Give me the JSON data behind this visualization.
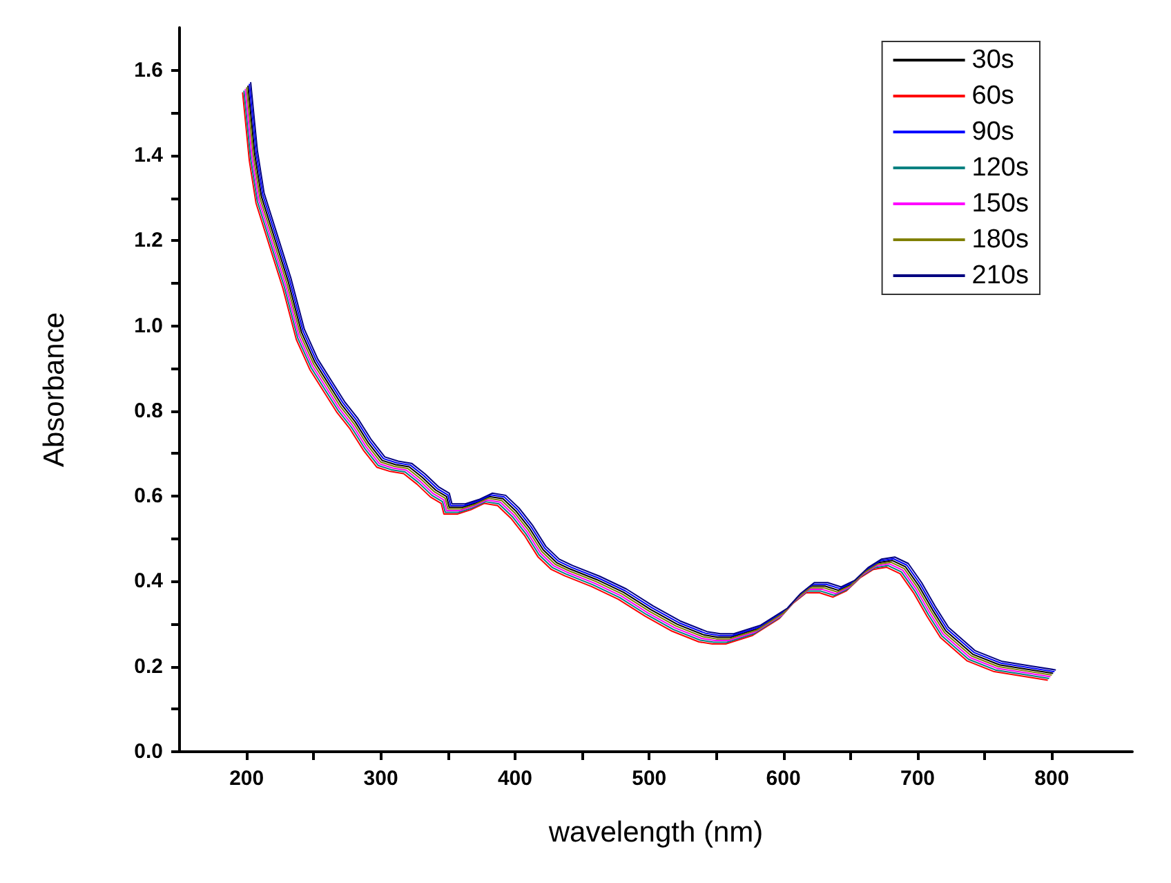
{
  "chart_data": {
    "type": "line",
    "xlabel": "wavelength (nm)",
    "ylabel": "Absorbance",
    "series": [
      {
        "name": "30s",
        "color": "#000000",
        "x": [
          201,
          206,
          211,
          221,
          231,
          241,
          251,
          261,
          271,
          281,
          291,
          301,
          311,
          321,
          331,
          341,
          349,
          351,
          361,
          371,
          381,
          391,
          401,
          411,
          421,
          431,
          441,
          461,
          481,
          501,
          521,
          541,
          551,
          561,
          581,
          601,
          611,
          621,
          631,
          641,
          651,
          661,
          671,
          681,
          691,
          701,
          711,
          721,
          741,
          761,
          781,
          801
        ],
        "values": [
          1.564,
          1.404,
          1.304,
          1.204,
          1.104,
          0.984,
          0.914,
          0.864,
          0.814,
          0.774,
          0.724,
          0.684,
          0.674,
          0.669,
          0.644,
          0.614,
          0.599,
          0.574,
          0.574,
          0.584,
          0.599,
          0.594,
          0.564,
          0.524,
          0.474,
          0.444,
          0.429,
          0.404,
          0.374,
          0.334,
          0.299,
          0.274,
          0.269,
          0.269,
          0.289,
          0.329,
          0.364,
          0.389,
          0.389,
          0.379,
          0.394,
          0.424,
          0.444,
          0.449,
          0.434,
          0.389,
          0.334,
          0.284,
          0.229,
          0.204,
          0.194,
          0.184
        ]
      },
      {
        "name": "60s",
        "color": "#ff0000",
        "x": [
          197,
          202,
          207,
          217,
          227,
          237,
          247,
          257,
          267,
          277,
          287,
          297,
          307,
          317,
          327,
          337,
          345,
          347,
          357,
          367,
          377,
          387,
          397,
          407,
          417,
          427,
          437,
          457,
          477,
          497,
          517,
          537,
          547,
          557,
          577,
          597,
          607,
          617,
          627,
          637,
          647,
          657,
          667,
          677,
          687,
          697,
          707,
          717,
          737,
          757,
          777,
          797
        ],
        "values": [
          1.548,
          1.388,
          1.288,
          1.188,
          1.088,
          0.968,
          0.898,
          0.848,
          0.798,
          0.758,
          0.708,
          0.668,
          0.658,
          0.653,
          0.628,
          0.598,
          0.583,
          0.558,
          0.558,
          0.568,
          0.583,
          0.578,
          0.548,
          0.508,
          0.458,
          0.428,
          0.413,
          0.388,
          0.358,
          0.318,
          0.283,
          0.258,
          0.253,
          0.253,
          0.273,
          0.313,
          0.348,
          0.373,
          0.373,
          0.363,
          0.378,
          0.408,
          0.428,
          0.433,
          0.418,
          0.373,
          0.318,
          0.268,
          0.213,
          0.188,
          0.178,
          0.168
        ]
      },
      {
        "name": "90s",
        "color": "#0000ff",
        "x": [
          202,
          207,
          212,
          222,
          232,
          242,
          252,
          262,
          272,
          282,
          292,
          302,
          312,
          322,
          332,
          342,
          350,
          352,
          362,
          372,
          382,
          392,
          402,
          412,
          422,
          432,
          442,
          462,
          482,
          502,
          522,
          542,
          552,
          562,
          582,
          602,
          612,
          622,
          632,
          642,
          652,
          662,
          672,
          682,
          692,
          702,
          712,
          722,
          742,
          762,
          782,
          802
        ],
        "values": [
          1.568,
          1.408,
          1.308,
          1.208,
          1.108,
          0.988,
          0.918,
          0.868,
          0.818,
          0.778,
          0.728,
          0.688,
          0.678,
          0.673,
          0.648,
          0.618,
          0.603,
          0.578,
          0.578,
          0.588,
          0.603,
          0.598,
          0.568,
          0.528,
          0.478,
          0.448,
          0.433,
          0.408,
          0.378,
          0.338,
          0.303,
          0.278,
          0.273,
          0.273,
          0.293,
          0.333,
          0.368,
          0.393,
          0.393,
          0.383,
          0.398,
          0.428,
          0.448,
          0.453,
          0.438,
          0.393,
          0.338,
          0.288,
          0.233,
          0.208,
          0.198,
          0.188
        ]
      },
      {
        "name": "120s",
        "color": "#008080",
        "x": [
          198,
          203,
          208,
          218,
          228,
          238,
          248,
          258,
          268,
          278,
          288,
          298,
          308,
          318,
          328,
          338,
          346,
          348,
          358,
          368,
          378,
          388,
          398,
          408,
          418,
          428,
          438,
          458,
          478,
          498,
          518,
          538,
          548,
          558,
          578,
          598,
          608,
          618,
          628,
          638,
          648,
          658,
          668,
          678,
          688,
          698,
          708,
          718,
          738,
          758,
          778,
          798
        ],
        "values": [
          1.552,
          1.392,
          1.292,
          1.192,
          1.092,
          0.972,
          0.902,
          0.852,
          0.802,
          0.762,
          0.712,
          0.672,
          0.662,
          0.657,
          0.632,
          0.602,
          0.587,
          0.562,
          0.562,
          0.572,
          0.587,
          0.582,
          0.552,
          0.512,
          0.462,
          0.432,
          0.417,
          0.392,
          0.362,
          0.322,
          0.287,
          0.262,
          0.257,
          0.257,
          0.277,
          0.317,
          0.352,
          0.377,
          0.377,
          0.367,
          0.382,
          0.412,
          0.432,
          0.437,
          0.422,
          0.377,
          0.322,
          0.272,
          0.217,
          0.192,
          0.182,
          0.172
        ]
      },
      {
        "name": "150s",
        "color": "#ff00ff",
        "x": [
          199,
          204,
          209,
          219,
          229,
          239,
          249,
          259,
          269,
          279,
          289,
          299,
          309,
          319,
          329,
          339,
          347,
          349,
          359,
          369,
          379,
          389,
          399,
          409,
          419,
          429,
          439,
          459,
          479,
          499,
          519,
          539,
          549,
          559,
          579,
          599,
          609,
          619,
          629,
          639,
          649,
          659,
          669,
          679,
          689,
          699,
          709,
          719,
          739,
          759,
          779,
          799
        ],
        "values": [
          1.556,
          1.396,
          1.296,
          1.196,
          1.096,
          0.976,
          0.906,
          0.856,
          0.806,
          0.766,
          0.716,
          0.676,
          0.666,
          0.661,
          0.636,
          0.606,
          0.591,
          0.566,
          0.566,
          0.576,
          0.591,
          0.586,
          0.556,
          0.516,
          0.466,
          0.436,
          0.421,
          0.396,
          0.366,
          0.326,
          0.291,
          0.266,
          0.261,
          0.261,
          0.281,
          0.321,
          0.356,
          0.381,
          0.381,
          0.371,
          0.386,
          0.416,
          0.436,
          0.441,
          0.426,
          0.381,
          0.326,
          0.276,
          0.221,
          0.196,
          0.186,
          0.176
        ]
      },
      {
        "name": "180s",
        "color": "#808000",
        "x": [
          200,
          205,
          210,
          220,
          230,
          240,
          250,
          260,
          270,
          280,
          290,
          300,
          310,
          320,
          330,
          340,
          348,
          350,
          360,
          370,
          380,
          390,
          400,
          410,
          420,
          430,
          440,
          460,
          480,
          500,
          520,
          540,
          550,
          560,
          580,
          600,
          610,
          620,
          630,
          640,
          650,
          660,
          670,
          680,
          690,
          700,
          710,
          720,
          740,
          760,
          780,
          800
        ],
        "values": [
          1.56,
          1.4,
          1.3,
          1.2,
          1.1,
          0.98,
          0.91,
          0.86,
          0.81,
          0.77,
          0.72,
          0.68,
          0.67,
          0.665,
          0.64,
          0.61,
          0.595,
          0.57,
          0.57,
          0.58,
          0.595,
          0.59,
          0.56,
          0.52,
          0.47,
          0.44,
          0.425,
          0.4,
          0.37,
          0.33,
          0.295,
          0.27,
          0.265,
          0.265,
          0.285,
          0.325,
          0.36,
          0.385,
          0.385,
          0.375,
          0.39,
          0.42,
          0.44,
          0.445,
          0.43,
          0.385,
          0.33,
          0.28,
          0.225,
          0.2,
          0.19,
          0.18
        ]
      },
      {
        "name": "210s",
        "color": "#000080",
        "x": [
          203,
          208,
          213,
          223,
          233,
          243,
          253,
          263,
          273,
          283,
          293,
          303,
          313,
          323,
          333,
          343,
          351,
          353,
          363,
          373,
          383,
          393,
          403,
          413,
          423,
          433,
          443,
          463,
          483,
          503,
          523,
          543,
          553,
          563,
          583,
          603,
          613,
          623,
          633,
          643,
          653,
          663,
          673,
          683,
          693,
          703,
          713,
          723,
          743,
          763,
          783,
          803
        ],
        "values": [
          1.572,
          1.412,
          1.312,
          1.212,
          1.112,
          0.992,
          0.922,
          0.872,
          0.822,
          0.782,
          0.732,
          0.692,
          0.682,
          0.677,
          0.652,
          0.622,
          0.607,
          0.582,
          0.582,
          0.592,
          0.607,
          0.602,
          0.572,
          0.532,
          0.482,
          0.452,
          0.437,
          0.412,
          0.382,
          0.342,
          0.307,
          0.282,
          0.277,
          0.277,
          0.297,
          0.337,
          0.372,
          0.397,
          0.397,
          0.387,
          0.402,
          0.432,
          0.452,
          0.457,
          0.442,
          0.397,
          0.342,
          0.292,
          0.237,
          0.212,
          0.202,
          0.192
        ]
      }
    ],
    "xlim": [
      150,
      860
    ],
    "xticks": [
      200,
      300,
      400,
      500,
      600,
      700,
      800
    ],
    "ylim": [
      0,
      1.7
    ],
    "yticks": [
      {
        "value": 0,
        "label": "0.0"
      },
      {
        "value": 0.2,
        "label": "0.2"
      },
      {
        "value": 0.4,
        "label": "0.4"
      },
      {
        "value": 0.6,
        "label": "0.6"
      },
      {
        "value": 0.8,
        "label": "0.8"
      },
      {
        "value": 1,
        "label": "1.0"
      },
      {
        "value": 1.2,
        "label": "1.2"
      },
      {
        "value": 1.4,
        "label": "1.4"
      },
      {
        "value": 1.6,
        "label": "1.6"
      }
    ],
    "grid": false,
    "legend": "top right",
    "marker": "none",
    "line_style": "solid"
  }
}
